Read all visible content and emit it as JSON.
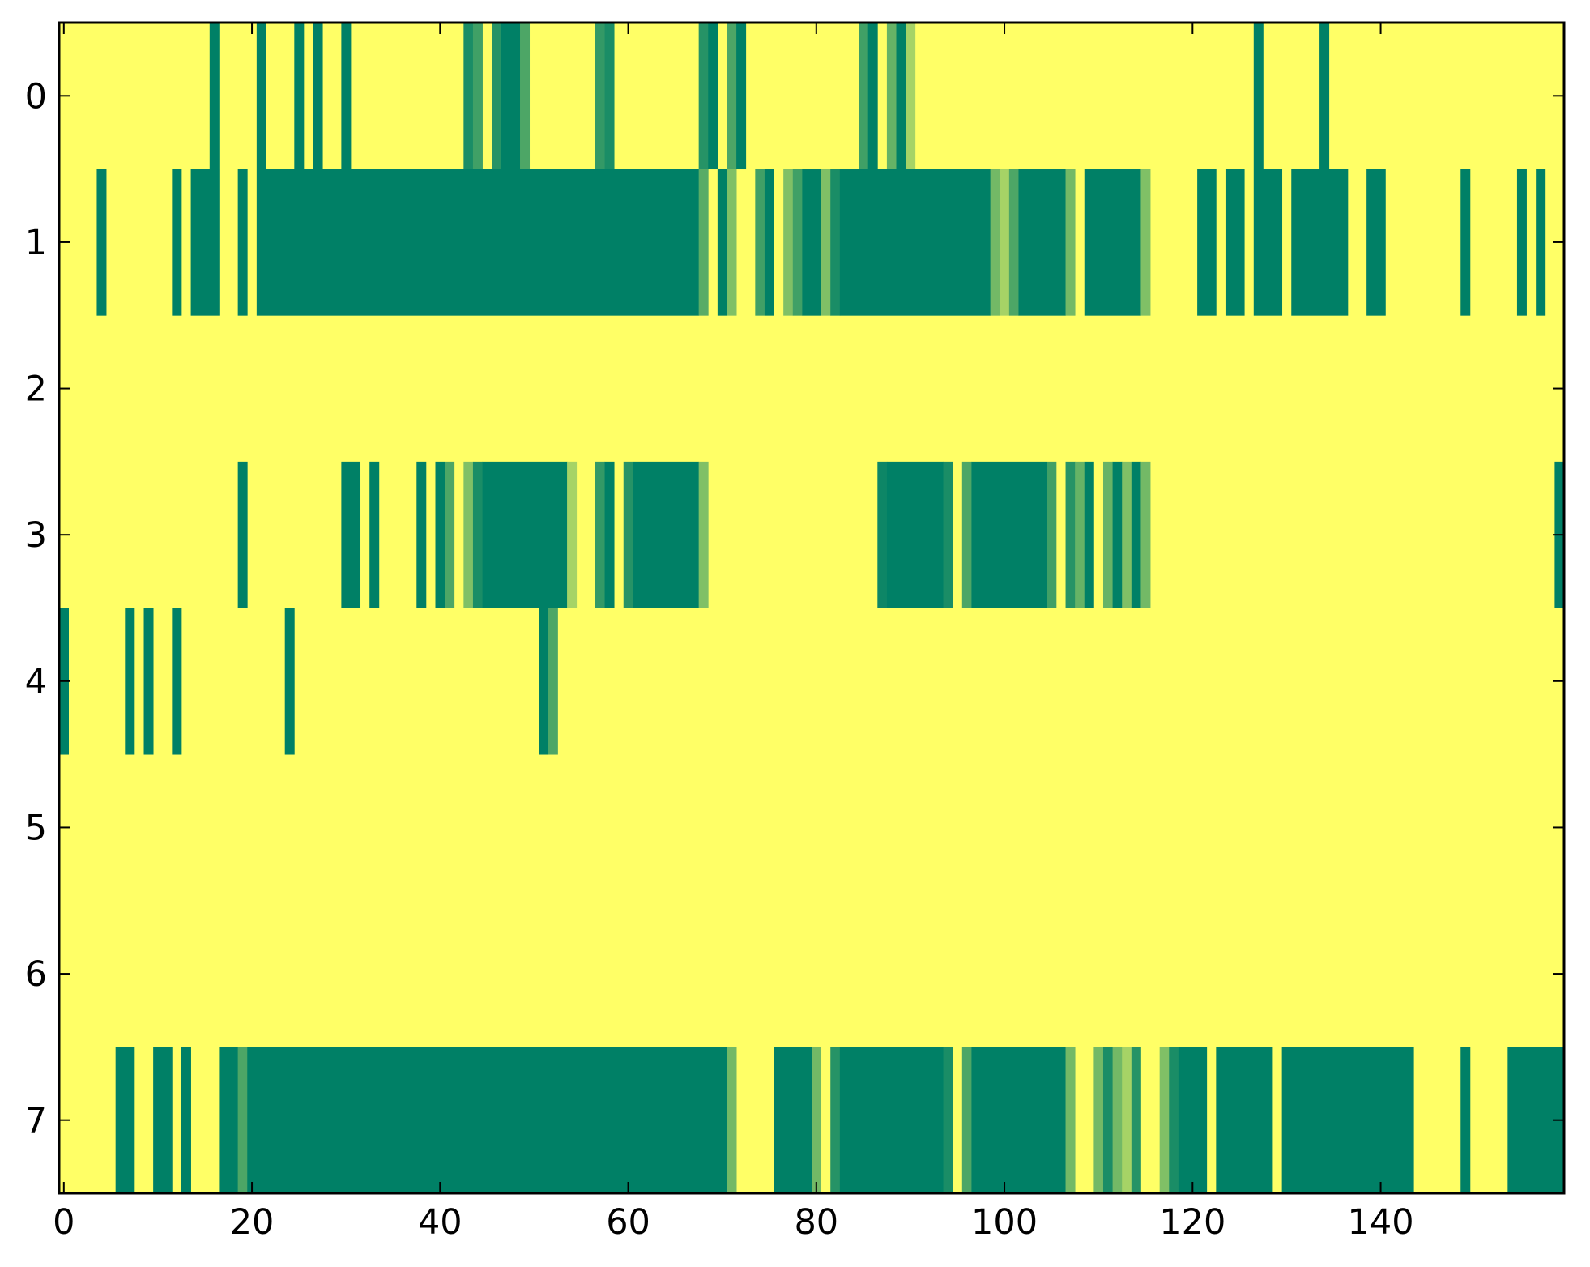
{
  "chart_data": {
    "type": "heatmap",
    "title": "",
    "xlabel": "",
    "ylabel": "",
    "xlim": [
      -0.5,
      159.5
    ],
    "ylim": [
      7.5,
      -0.5
    ],
    "x_ticks": [
      0,
      20,
      40,
      60,
      80,
      100,
      120,
      140
    ],
    "x_tick_labels": [
      "0",
      "20",
      "40",
      "60",
      "80",
      "100",
      "120",
      "140"
    ],
    "y_ticks": [
      0,
      1,
      2,
      3,
      4,
      5,
      6,
      7
    ],
    "y_tick_labels": [
      "0",
      "1",
      "2",
      "3",
      "4",
      "5",
      "6",
      "7"
    ],
    "colormap": "summer_r",
    "colormap_colors": {
      "low": "#ffff66",
      "high": "#008066"
    },
    "background_value": 0.0,
    "rows": [
      {
        "row": 0,
        "runs": [
          [
            16,
            16,
            1.0
          ],
          [
            21,
            21,
            1.0
          ],
          [
            25,
            25,
            1.0
          ],
          [
            27,
            27,
            1.0
          ],
          [
            30,
            30,
            1.0
          ],
          [
            43,
            43,
            0.9
          ],
          [
            44,
            44,
            0.75
          ],
          [
            46,
            46,
            0.85
          ],
          [
            47,
            48,
            1.0
          ],
          [
            49,
            49,
            0.7
          ],
          [
            57,
            57,
            0.8
          ],
          [
            58,
            58,
            0.9
          ],
          [
            68,
            68,
            0.85
          ],
          [
            69,
            69,
            1.0
          ],
          [
            71,
            71,
            0.7
          ],
          [
            72,
            72,
            1.0
          ],
          [
            85,
            85,
            0.75
          ],
          [
            86,
            86,
            1.0
          ],
          [
            88,
            88,
            0.6
          ],
          [
            89,
            89,
            1.0
          ],
          [
            90,
            90,
            0.35
          ],
          [
            127,
            127,
            1.0
          ],
          [
            134,
            134,
            1.0
          ]
        ]
      },
      {
        "row": 1,
        "runs": [
          [
            4,
            4,
            1.0
          ],
          [
            12,
            12,
            1.0
          ],
          [
            14,
            16,
            1.0
          ],
          [
            19,
            19,
            1.0
          ],
          [
            21,
            67,
            1.0
          ],
          [
            68,
            68,
            0.65
          ],
          [
            70,
            70,
            1.0
          ],
          [
            71,
            71,
            0.5
          ],
          [
            74,
            74,
            0.75
          ],
          [
            75,
            75,
            1.0
          ],
          [
            77,
            77,
            0.5
          ],
          [
            78,
            78,
            0.75
          ],
          [
            79,
            80,
            1.0
          ],
          [
            81,
            81,
            0.5
          ],
          [
            82,
            82,
            0.9
          ],
          [
            83,
            98,
            1.0
          ],
          [
            99,
            99,
            0.55
          ],
          [
            100,
            100,
            0.35
          ],
          [
            101,
            101,
            0.7
          ],
          [
            102,
            106,
            1.0
          ],
          [
            107,
            107,
            0.55
          ],
          [
            109,
            114,
            1.0
          ],
          [
            115,
            115,
            0.5
          ],
          [
            121,
            122,
            1.0
          ],
          [
            124,
            125,
            1.0
          ],
          [
            127,
            129,
            1.0
          ],
          [
            131,
            136,
            1.0
          ],
          [
            139,
            140,
            1.0
          ],
          [
            149,
            149,
            1.0
          ],
          [
            155,
            155,
            1.0
          ],
          [
            157,
            157,
            1.0
          ]
        ]
      },
      {
        "row": 2,
        "runs": []
      },
      {
        "row": 3,
        "runs": [
          [
            19,
            19,
            1.0
          ],
          [
            30,
            31,
            1.0
          ],
          [
            33,
            33,
            1.0
          ],
          [
            38,
            38,
            1.0
          ],
          [
            40,
            40,
            1.0
          ],
          [
            41,
            41,
            0.7
          ],
          [
            43,
            43,
            0.5
          ],
          [
            44,
            44,
            0.9
          ],
          [
            45,
            53,
            1.0
          ],
          [
            54,
            54,
            0.35
          ],
          [
            57,
            57,
            0.8
          ],
          [
            58,
            58,
            1.0
          ],
          [
            60,
            60,
            0.85
          ],
          [
            61,
            67,
            1.0
          ],
          [
            68,
            68,
            0.5
          ],
          [
            87,
            87,
            0.95
          ],
          [
            88,
            93,
            1.0
          ],
          [
            94,
            94,
            0.9
          ],
          [
            96,
            96,
            0.7
          ],
          [
            97,
            104,
            1.0
          ],
          [
            105,
            105,
            0.75
          ],
          [
            107,
            107,
            0.85
          ],
          [
            108,
            108,
            0.6
          ],
          [
            109,
            109,
            1.0
          ],
          [
            111,
            111,
            0.6
          ],
          [
            112,
            112,
            1.0
          ],
          [
            113,
            113,
            0.5
          ],
          [
            114,
            114,
            1.0
          ],
          [
            115,
            115,
            0.55
          ],
          [
            159,
            159,
            1.0
          ]
        ]
      },
      {
        "row": 4,
        "runs": [
          [
            0,
            0,
            1.0
          ],
          [
            7,
            7,
            1.0
          ],
          [
            9,
            9,
            1.0
          ],
          [
            12,
            12,
            1.0
          ],
          [
            24,
            24,
            1.0
          ],
          [
            51,
            51,
            1.0
          ],
          [
            52,
            52,
            0.7
          ]
        ]
      },
      {
        "row": 5,
        "runs": []
      },
      {
        "row": 6,
        "runs": []
      },
      {
        "row": 7,
        "runs": [
          [
            6,
            7,
            1.0
          ],
          [
            10,
            11,
            1.0
          ],
          [
            13,
            13,
            1.0
          ],
          [
            17,
            18,
            1.0
          ],
          [
            19,
            19,
            0.7
          ],
          [
            20,
            70,
            1.0
          ],
          [
            71,
            71,
            0.55
          ],
          [
            76,
            79,
            1.0
          ],
          [
            80,
            80,
            0.55
          ],
          [
            82,
            82,
            0.85
          ],
          [
            83,
            93,
            1.0
          ],
          [
            94,
            94,
            0.9
          ],
          [
            96,
            96,
            0.7
          ],
          [
            97,
            106,
            1.0
          ],
          [
            107,
            107,
            0.55
          ],
          [
            110,
            110,
            0.55
          ],
          [
            111,
            111,
            0.9
          ],
          [
            112,
            112,
            0.55
          ],
          [
            113,
            113,
            0.35
          ],
          [
            114,
            114,
            0.85
          ],
          [
            117,
            117,
            0.5
          ],
          [
            118,
            118,
            0.9
          ],
          [
            119,
            121,
            1.0
          ],
          [
            123,
            128,
            1.0
          ],
          [
            130,
            143,
            1.0
          ],
          [
            149,
            149,
            1.0
          ],
          [
            154,
            159,
            1.0
          ]
        ]
      }
    ]
  }
}
